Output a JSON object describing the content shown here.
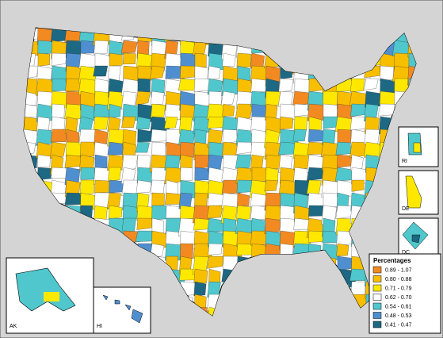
{
  "legend": {
    "title": "Percentages",
    "items": [
      {
        "label": "0.89 - 1.07",
        "color": "#f28a21"
      },
      {
        "label": "0.80 - 0.88",
        "color": "#f8be00"
      },
      {
        "label": "0.71 - 0.79",
        "color": "#ffe800"
      },
      {
        "label": "0.62 - 0.70",
        "color": "#ffffff"
      },
      {
        "label": "0.54 - 0.61",
        "color": "#4fc7cc"
      },
      {
        "label": "0.48 - 0.53",
        "color": "#4f8fd0"
      },
      {
        "label": "0.41 - 0.47",
        "color": "#1d6882"
      }
    ]
  },
  "insets": [
    {
      "label": "AK"
    },
    {
      "label": "HI"
    },
    {
      "label": "RI"
    },
    {
      "label": "DE"
    },
    {
      "label": "DC"
    }
  ]
}
